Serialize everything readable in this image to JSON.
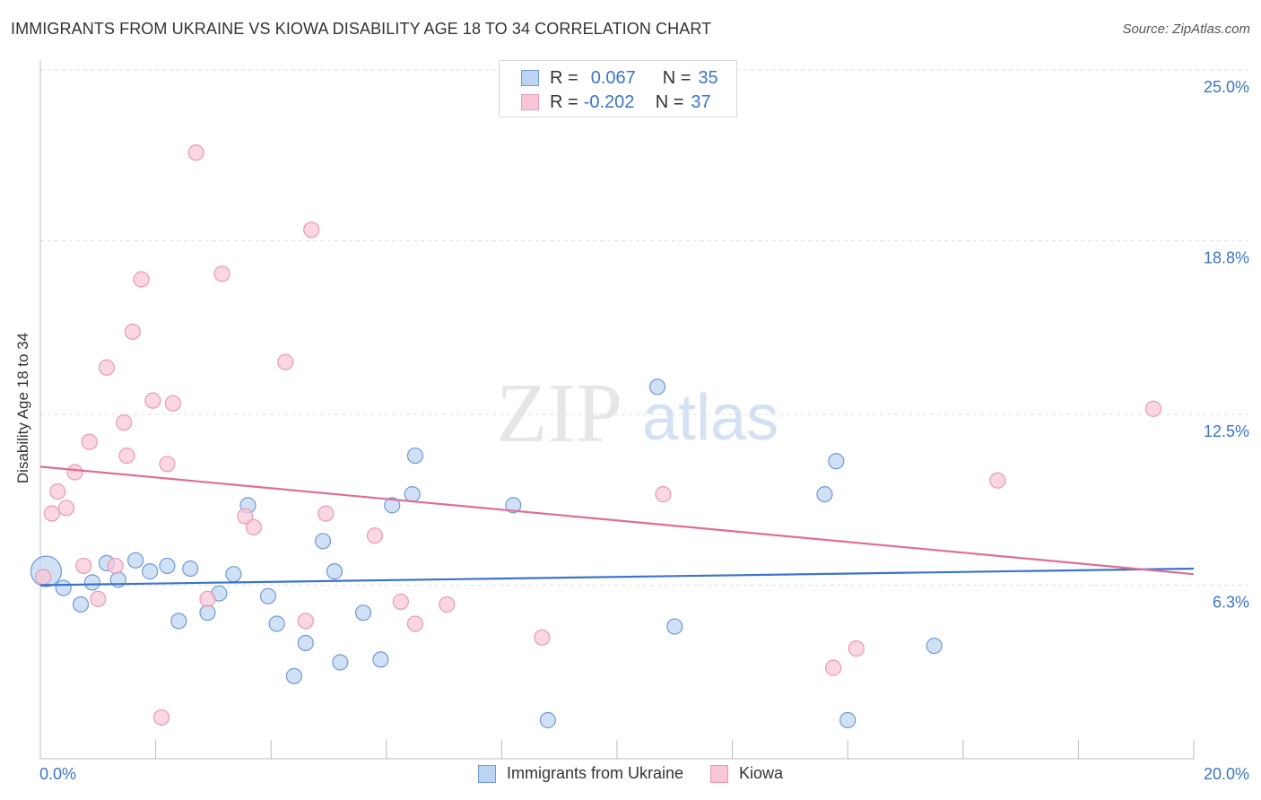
{
  "title": "IMMIGRANTS FROM UKRAINE VS KIOWA DISABILITY AGE 18 TO 34 CORRELATION CHART",
  "source": "Source: ZipAtlas.com",
  "watermark": {
    "zip": "ZIP",
    "atlas": "atlas"
  },
  "legend_top": [
    {
      "r_label": "R =",
      "r_value": "0.067",
      "n_label": "N =",
      "n_value": "35"
    },
    {
      "r_label": "R =",
      "r_value": "-0.202",
      "n_label": "N =",
      "n_value": "37"
    }
  ],
  "colors": {
    "blue": "#3a74c9",
    "blue_fill": "#bcd4f2",
    "pink": "#e06d97",
    "pink_fill": "#f8c6d6",
    "grid": "#dddddd",
    "axis_text": "#3a74c9"
  },
  "chart_data": {
    "type": "scatter",
    "title": "IMMIGRANTS FROM UKRAINE VS KIOWA DISABILITY AGE 18 TO 34 CORRELATION CHART",
    "xlabel": "",
    "ylabel": "Disability Age 18 to 34",
    "xlim": [
      0,
      20
    ],
    "ylim": [
      0,
      25.0
    ],
    "x_tick_labels": [
      "0.0%",
      "20.0%"
    ],
    "y_ticks": [
      6.3,
      12.5,
      18.8,
      25.0
    ],
    "y_tick_labels": [
      "6.3%",
      "12.5%",
      "18.8%",
      "25.0%"
    ],
    "grid": true,
    "legend_position": "bottom",
    "series": [
      {
        "name": "Immigrants from Ukraine",
        "color": "#3a74c9",
        "r": 0.067,
        "n": 35,
        "trend": [
          [
            0,
            6.3
          ],
          [
            20,
            6.9
          ]
        ],
        "points": [
          [
            0.1,
            6.8
          ],
          [
            0.4,
            6.2
          ],
          [
            0.7,
            5.6
          ],
          [
            0.9,
            6.4
          ],
          [
            1.15,
            7.1
          ],
          [
            1.35,
            6.5
          ],
          [
            1.65,
            7.2
          ],
          [
            1.9,
            6.8
          ],
          [
            2.2,
            7.0
          ],
          [
            2.4,
            5.0
          ],
          [
            2.6,
            6.9
          ],
          [
            2.9,
            5.3
          ],
          [
            3.1,
            6.0
          ],
          [
            3.35,
            6.7
          ],
          [
            3.6,
            9.2
          ],
          [
            3.95,
            5.9
          ],
          [
            4.1,
            4.9
          ],
          [
            4.4,
            3.0
          ],
          [
            4.6,
            4.2
          ],
          [
            4.9,
            7.9
          ],
          [
            5.1,
            6.8
          ],
          [
            5.2,
            3.5
          ],
          [
            5.6,
            5.3
          ],
          [
            5.9,
            3.6
          ],
          [
            6.1,
            9.2
          ],
          [
            6.45,
            9.6
          ],
          [
            6.5,
            11.0
          ],
          [
            8.2,
            9.2
          ],
          [
            8.8,
            1.4
          ],
          [
            10.7,
            13.5
          ],
          [
            11.0,
            4.8
          ],
          [
            13.6,
            9.6
          ],
          [
            13.8,
            10.8
          ],
          [
            14.0,
            1.4
          ],
          [
            15.5,
            4.1
          ]
        ]
      },
      {
        "name": "Kiowa",
        "color": "#e06d97",
        "r": -0.202,
        "n": 37,
        "trend": [
          [
            0,
            10.6
          ],
          [
            20,
            6.7
          ]
        ],
        "points": [
          [
            0.05,
            6.6
          ],
          [
            0.2,
            8.9
          ],
          [
            0.3,
            9.7
          ],
          [
            0.45,
            9.1
          ],
          [
            0.6,
            10.4
          ],
          [
            0.75,
            7.0
          ],
          [
            0.85,
            11.5
          ],
          [
            1.0,
            5.8
          ],
          [
            1.15,
            14.2
          ],
          [
            1.3,
            7.0
          ],
          [
            1.45,
            12.2
          ],
          [
            1.5,
            11.0
          ],
          [
            1.6,
            15.5
          ],
          [
            1.75,
            17.4
          ],
          [
            1.95,
            13.0
          ],
          [
            2.1,
            1.5
          ],
          [
            2.2,
            10.7
          ],
          [
            2.3,
            12.9
          ],
          [
            2.7,
            22.0
          ],
          [
            2.9,
            5.8
          ],
          [
            3.15,
            17.6
          ],
          [
            3.55,
            8.8
          ],
          [
            3.7,
            8.4
          ],
          [
            4.25,
            14.4
          ],
          [
            4.6,
            5.0
          ],
          [
            4.7,
            19.2
          ],
          [
            4.95,
            8.9
          ],
          [
            5.8,
            8.1
          ],
          [
            6.25,
            5.7
          ],
          [
            6.5,
            4.9
          ],
          [
            7.05,
            5.6
          ],
          [
            8.7,
            4.4
          ],
          [
            10.8,
            9.6
          ],
          [
            13.75,
            3.3
          ],
          [
            14.15,
            4.0
          ],
          [
            16.6,
            10.1
          ],
          [
            19.3,
            12.7
          ]
        ]
      }
    ]
  }
}
